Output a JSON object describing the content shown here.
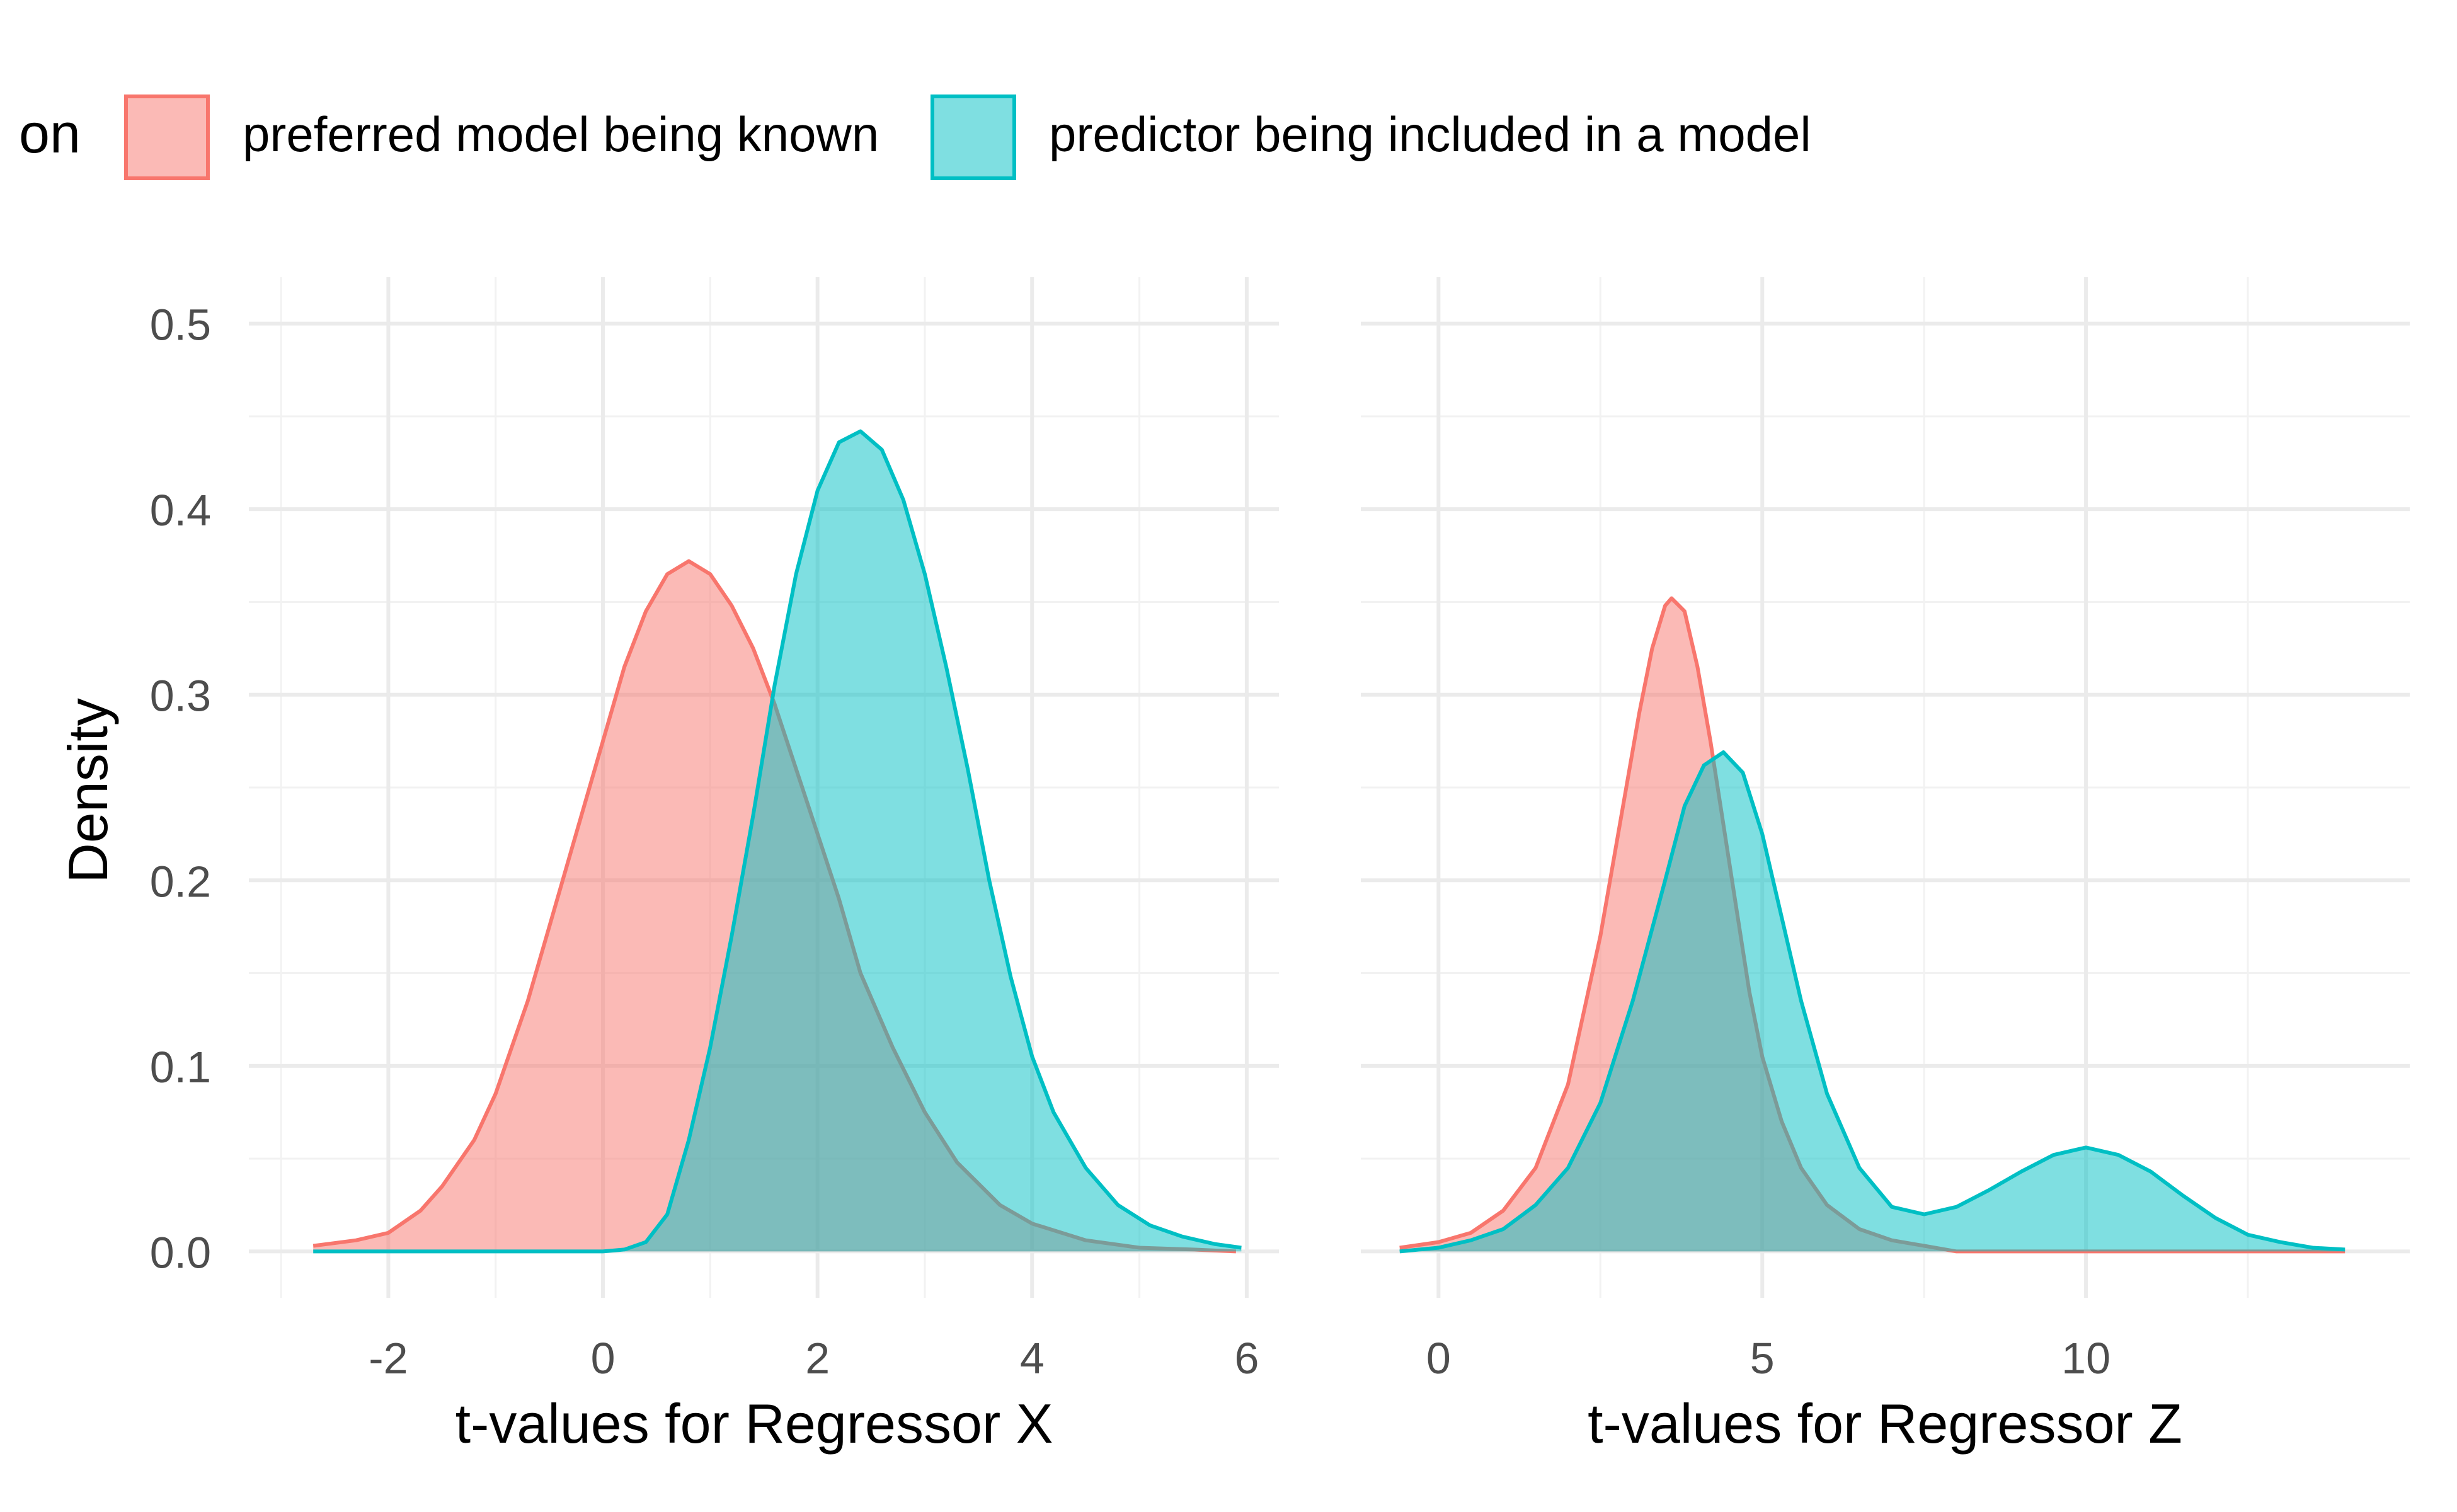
{
  "legend": {
    "title": "on",
    "placement": "top",
    "entries": [
      {
        "label": "preferred model being known",
        "fill": "#F8766D"
      },
      {
        "label": "predictor being included in a model",
        "fill": "#00BFC4"
      }
    ]
  },
  "ylabel": "Density",
  "colors": {
    "gridMajor": "#ebebeb",
    "gridMinor": "#f2f2f2",
    "tick": "#4d4d4d",
    "overlap": "#7fb8b5",
    "background": "#ffffff"
  },
  "chart_data": [
    {
      "type": "area",
      "xlabel": "t-values for Regressor X",
      "ylabel": "Density",
      "xlim": [
        -3.3,
        6.3
      ],
      "ylim": [
        -0.025,
        0.525
      ],
      "xticks": [
        -2,
        0,
        2,
        4,
        6
      ],
      "yticks": [
        0.0,
        0.1,
        0.2,
        0.3,
        0.4,
        0.5
      ],
      "grid": true,
      "series": [
        {
          "name": "preferred model being known",
          "x": [
            -2.7,
            -2.3,
            -2.0,
            -1.7,
            -1.5,
            -1.2,
            -1.0,
            -0.7,
            -0.5,
            -0.3,
            0.0,
            0.2,
            0.4,
            0.6,
            0.8,
            1.0,
            1.2,
            1.4,
            1.6,
            1.8,
            2.0,
            2.2,
            2.4,
            2.7,
            3.0,
            3.3,
            3.7,
            4.0,
            4.5,
            5.0,
            5.5,
            5.9
          ],
          "y": [
            0.003,
            0.006,
            0.01,
            0.022,
            0.035,
            0.06,
            0.085,
            0.135,
            0.175,
            0.215,
            0.275,
            0.315,
            0.345,
            0.365,
            0.372,
            0.365,
            0.348,
            0.325,
            0.295,
            0.26,
            0.225,
            0.19,
            0.15,
            0.11,
            0.075,
            0.048,
            0.025,
            0.015,
            0.006,
            0.002,
            0.001,
            0.0
          ]
        },
        {
          "name": "predictor being included in a model",
          "x": [
            -2.7,
            -0.5,
            0.0,
            0.2,
            0.4,
            0.6,
            0.8,
            1.0,
            1.2,
            1.4,
            1.6,
            1.8,
            2.0,
            2.2,
            2.4,
            2.6,
            2.8,
            3.0,
            3.2,
            3.4,
            3.6,
            3.8,
            4.0,
            4.2,
            4.5,
            4.8,
            5.1,
            5.4,
            5.7,
            5.95
          ],
          "y": [
            0.0,
            0.0,
            0.0,
            0.001,
            0.005,
            0.02,
            0.06,
            0.11,
            0.17,
            0.235,
            0.305,
            0.365,
            0.41,
            0.436,
            0.442,
            0.432,
            0.405,
            0.365,
            0.315,
            0.26,
            0.2,
            0.148,
            0.105,
            0.075,
            0.045,
            0.025,
            0.014,
            0.008,
            0.004,
            0.002
          ]
        }
      ]
    },
    {
      "type": "area",
      "xlabel": "t-values for Regressor Z",
      "ylabel": "Density",
      "xlim": [
        -1.2,
        15.0
      ],
      "ylim": [
        -0.025,
        0.525
      ],
      "xticks": [
        0,
        5,
        10
      ],
      "yticks": [
        0.0,
        0.1,
        0.2,
        0.3,
        0.4,
        0.5
      ],
      "grid": true,
      "series": [
        {
          "name": "preferred model being known",
          "x": [
            -0.6,
            0.0,
            0.5,
            1.0,
            1.5,
            2.0,
            2.5,
            2.8,
            3.1,
            3.3,
            3.5,
            3.6,
            3.8,
            4.0,
            4.2,
            4.4,
            4.6,
            4.8,
            5.0,
            5.3,
            5.6,
            6.0,
            6.5,
            7.0,
            7.5,
            8.0,
            9.0,
            10.0,
            12.0,
            14.0
          ],
          "y": [
            0.002,
            0.005,
            0.01,
            0.022,
            0.045,
            0.09,
            0.17,
            0.23,
            0.29,
            0.325,
            0.348,
            0.352,
            0.345,
            0.315,
            0.275,
            0.23,
            0.185,
            0.14,
            0.105,
            0.07,
            0.045,
            0.025,
            0.012,
            0.006,
            0.003,
            0.0,
            0.0,
            0.0,
            0.0,
            0.0
          ]
        },
        {
          "name": "predictor being included in a model",
          "x": [
            -0.6,
            0.0,
            0.5,
            1.0,
            1.5,
            2.0,
            2.5,
            3.0,
            3.5,
            3.8,
            4.1,
            4.4,
            4.7,
            5.0,
            5.3,
            5.6,
            6.0,
            6.5,
            7.0,
            7.5,
            8.0,
            8.5,
            9.0,
            9.5,
            10.0,
            10.5,
            11.0,
            11.5,
            12.0,
            12.5,
            13.0,
            13.5,
            14.0
          ],
          "y": [
            0.0,
            0.002,
            0.006,
            0.012,
            0.025,
            0.045,
            0.08,
            0.135,
            0.2,
            0.24,
            0.262,
            0.269,
            0.258,
            0.225,
            0.18,
            0.135,
            0.085,
            0.045,
            0.024,
            0.02,
            0.024,
            0.033,
            0.043,
            0.052,
            0.056,
            0.052,
            0.043,
            0.03,
            0.018,
            0.009,
            0.005,
            0.002,
            0.001
          ]
        }
      ]
    }
  ]
}
